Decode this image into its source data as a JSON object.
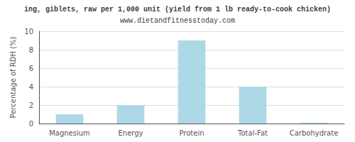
{
  "chart_data": {
    "type": "bar",
    "title": "ing, giblets, raw per 1,000 unit (yield from 1 lb ready-to-cook chicken)",
    "subtitle": "www.dietandfitnesstoday.com",
    "categories": [
      "Magnesium",
      "Energy",
      "Protein",
      "Total-Fat",
      "Carbohydrate"
    ],
    "values": [
      1.0,
      2.0,
      9.0,
      4.0,
      0.1
    ],
    "color": "#add8e6",
    "ylabel": "Percentage of RDH (%)",
    "ylim": [
      0,
      10
    ],
    "yticks": [
      0,
      2,
      4,
      6,
      8,
      10
    ],
    "grid": true
  }
}
